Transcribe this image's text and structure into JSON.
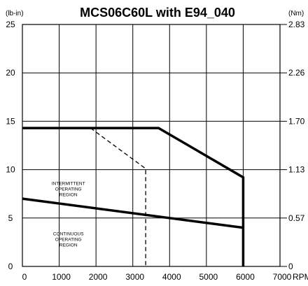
{
  "chart_data": {
    "type": "line",
    "title": "MCS06C60L with E94_040",
    "ylabel": "(lb-in)",
    "ylabel_right": "(Nm)",
    "x_unit": "RPM",
    "xlim": [
      0,
      7000
    ],
    "ylim": [
      0,
      25
    ],
    "x_ticks": [
      0,
      1000,
      2000,
      3000,
      4000,
      5000,
      6000,
      7000
    ],
    "y_ticks": [
      0,
      5,
      10,
      15,
      20,
      25
    ],
    "y_ticks_right": [
      {
        "value": 0,
        "label": "0"
      },
      {
        "value": 5,
        "label": "0.57"
      },
      {
        "value": 10,
        "label": "1.13"
      },
      {
        "value": 15,
        "label": "1.70"
      },
      {
        "value": 20,
        "label": "2.26"
      },
      {
        "value": 25,
        "label": "2.83"
      }
    ],
    "grid": true,
    "series": [
      {
        "style": "solid-thick",
        "x": [
          0,
          3700,
          6000,
          6000
        ],
        "y": [
          14.3,
          14.3,
          9.2,
          0
        ]
      },
      {
        "style": "dashed",
        "x": [
          1850,
          3350,
          3350
        ],
        "y": [
          14.3,
          10.1,
          0
        ]
      },
      {
        "style": "solid-thick",
        "x": [
          0,
          6000
        ],
        "y": [
          7,
          4
        ]
      }
    ],
    "annotations": [
      {
        "lines": [
          "INTERMITTENT",
          "OPERATING",
          "REGION"
        ],
        "x": 1250,
        "y": 8.4
      },
      {
        "lines": [
          "CONTINUOUS",
          "OPERATING",
          "REGION"
        ],
        "x": 1250,
        "y": 3.2
      }
    ]
  }
}
